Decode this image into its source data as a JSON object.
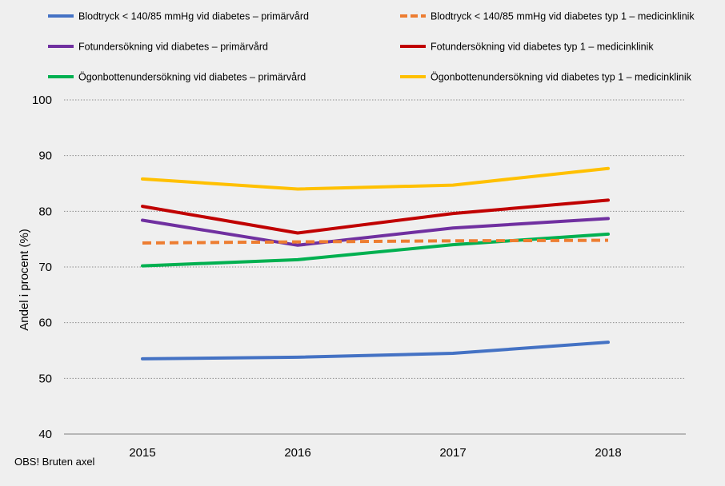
{
  "chart_data": {
    "type": "line",
    "title": "",
    "xlabel": "",
    "ylabel": "Andel i procent (%)",
    "ylim": [
      40,
      100
    ],
    "yticks": [
      40,
      50,
      60,
      70,
      80,
      90,
      100
    ],
    "grid": "horizontal-dotted",
    "legend_position": "top",
    "categories": [
      "2015",
      "2016",
      "2017",
      "2018"
    ],
    "series": [
      {
        "name": "Blodtryck < 140/85 mmHg vid diabetes – primärvård",
        "color": "#4472c4",
        "dashed": false,
        "values": [
          53.5,
          53.8,
          54.5,
          56.5
        ]
      },
      {
        "name": "Blodtryck < 140/85 mmHg vid diabetes typ 1 – medicinklinik",
        "color": "#ed7d31",
        "dashed": true,
        "values": [
          74.3,
          74.5,
          74.7,
          74.8
        ]
      },
      {
        "name": "Fotundersökning vid diabetes – primärvård",
        "color": "#7030a0",
        "dashed": false,
        "values": [
          78.4,
          73.9,
          77.0,
          78.7
        ]
      },
      {
        "name": "Fotundersökning vid diabetes typ 1 – medicinklinik",
        "color": "#c00000",
        "dashed": false,
        "values": [
          80.9,
          76.1,
          79.6,
          82.0
        ]
      },
      {
        "name": "Ögonbottenundersökning vid diabetes – primärvård",
        "color": "#00b050",
        "dashed": false,
        "values": [
          70.2,
          71.3,
          74.0,
          75.9
        ]
      },
      {
        "name": "Ögonbottenundersökning vid diabetes typ 1 – medicinklinik",
        "color": "#ffc000",
        "dashed": false,
        "values": [
          85.8,
          84.0,
          84.7,
          87.7
        ]
      }
    ],
    "note": "OBS! Bruten axel"
  }
}
